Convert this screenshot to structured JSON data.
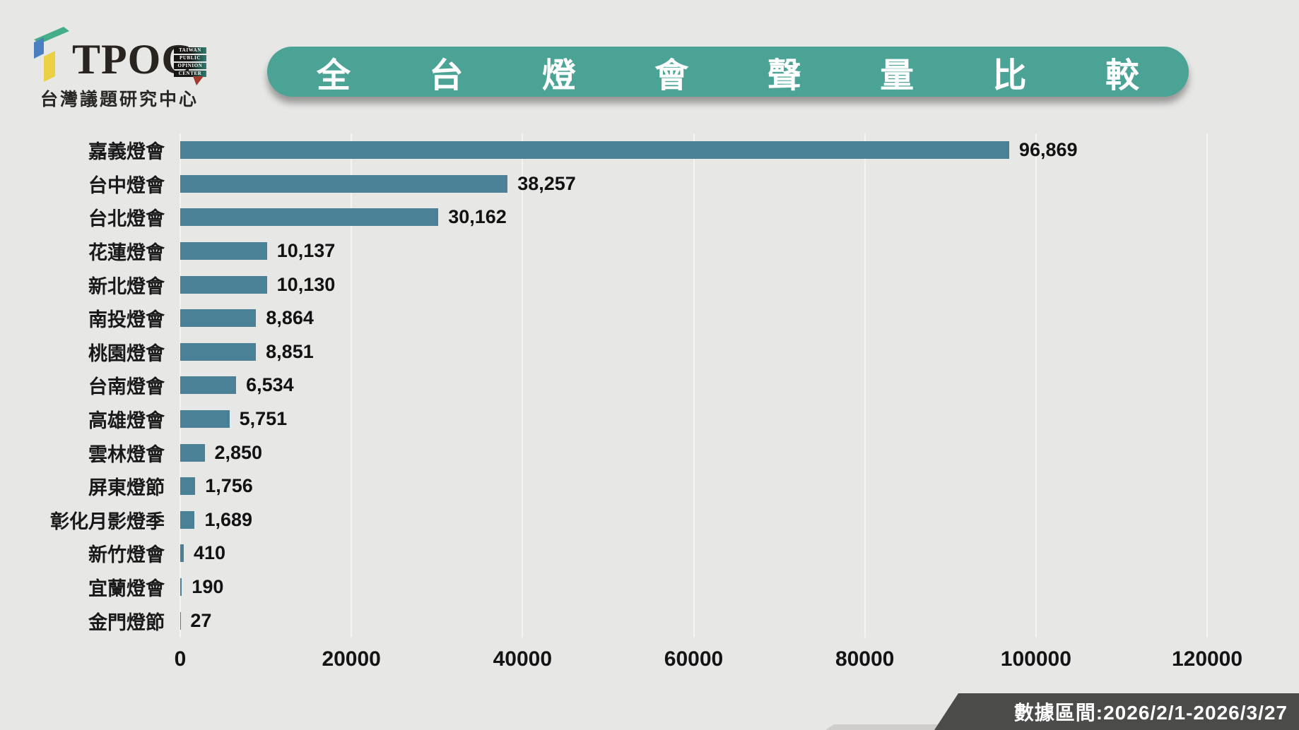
{
  "logo": {
    "brand": "TPOC",
    "stack": [
      "TAIWAN",
      "PUBLIC",
      "OPINION",
      "CENTER"
    ],
    "subtitle": "台灣議題研究中心"
  },
  "title": {
    "text": "全台燈會聲量比較",
    "chars": [
      "全",
      "台",
      "燈",
      "會",
      "聲",
      "量",
      "比",
      "較"
    ]
  },
  "footer": {
    "label": "數據區間:2026/2/1-2026/3/27"
  },
  "colors": {
    "background": "#e7e7e6",
    "bar": "#4a8197",
    "title_pill": "#4aa394",
    "footer_bar": "#4b4b4a",
    "gridline": "#f4f4f2",
    "logo_green": "#43ae89",
    "logo_blue": "#4a7fc0",
    "logo_yellow": "#ecd043",
    "logo_red": "#a23b30"
  },
  "chart_data": {
    "type": "bar",
    "orientation": "horizontal",
    "title": "全台燈會聲量比較",
    "categories": [
      "嘉義燈會",
      "台中燈會",
      "台北燈會",
      "花蓮燈會",
      "新北燈會",
      "南投燈會",
      "桃園燈會",
      "台南燈會",
      "高雄燈會",
      "雲林燈會",
      "屏東燈節",
      "彰化月影燈季",
      "新竹燈會",
      "宜蘭燈會",
      "金門燈節"
    ],
    "values": [
      96869,
      38257,
      30162,
      10137,
      10130,
      8864,
      8851,
      6534,
      5751,
      2850,
      1756,
      1689,
      410,
      190,
      27
    ],
    "value_labels": [
      "96,869",
      "38,257",
      "30,162",
      "10,137",
      "10,130",
      "8,864",
      "8,851",
      "6,534",
      "5,751",
      "2,850",
      "1,756",
      "1,689",
      "410",
      "190",
      "27"
    ],
    "xlim": [
      0,
      120000
    ],
    "xticks": [
      0,
      20000,
      40000,
      60000,
      80000,
      100000,
      120000
    ],
    "xtick_labels": [
      "0",
      "20000",
      "40000",
      "60000",
      "80000",
      "100000",
      "120000"
    ],
    "grid": true,
    "legend": false,
    "bar_color": "#4a8197"
  }
}
